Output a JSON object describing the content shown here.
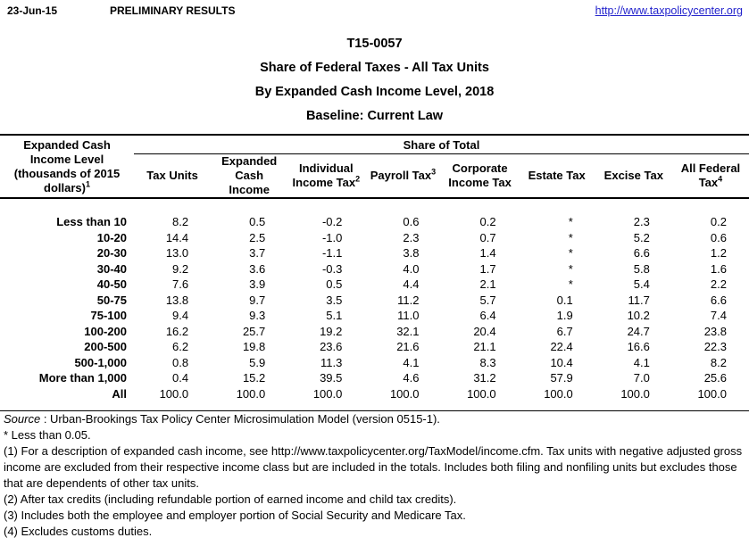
{
  "header": {
    "date": "23-Jun-15",
    "status": "PRELIMINARY RESULTS",
    "link": "http://www.taxpolicycenter.org"
  },
  "titles": [
    "T15-0057",
    "Share of Federal Taxes - All Tax Units",
    "By Expanded Cash Income Level, 2018",
    "Baseline: Current Law"
  ],
  "table": {
    "row_header": {
      "lines": [
        "Expanded Cash",
        "Income Level",
        "(thousands of 2015",
        "dollars)"
      ],
      "sup": "1"
    },
    "group_header": "Share of Total",
    "columns": [
      {
        "lines": [
          "Tax Units"
        ],
        "sup": null
      },
      {
        "lines": [
          "Expanded Cash",
          "Income"
        ],
        "sup": null
      },
      {
        "lines": [
          "Individual",
          "Income Tax"
        ],
        "sup": "2"
      },
      {
        "lines": [
          "Payroll Tax"
        ],
        "sup": "3"
      },
      {
        "lines": [
          "Corporate",
          "Income Tax"
        ],
        "sup": null
      },
      {
        "lines": [
          "Estate Tax"
        ],
        "sup": null
      },
      {
        "lines": [
          "Excise Tax"
        ],
        "sup": null
      },
      {
        "lines": [
          "All Federal",
          "Tax"
        ],
        "sup": "4"
      }
    ],
    "rows": [
      {
        "label": "Less than 10",
        "values": [
          "8.2",
          "0.5",
          "-0.2",
          "0.6",
          "0.2",
          "*",
          "2.3",
          "0.2"
        ]
      },
      {
        "label": "10-20",
        "values": [
          "14.4",
          "2.5",
          "-1.0",
          "2.3",
          "0.7",
          "*",
          "5.2",
          "0.6"
        ]
      },
      {
        "label": "20-30",
        "values": [
          "13.0",
          "3.7",
          "-1.1",
          "3.8",
          "1.4",
          "*",
          "6.6",
          "1.2"
        ]
      },
      {
        "label": "30-40",
        "values": [
          "9.2",
          "3.6",
          "-0.3",
          "4.0",
          "1.7",
          "*",
          "5.8",
          "1.6"
        ]
      },
      {
        "label": "40-50",
        "values": [
          "7.6",
          "3.9",
          "0.5",
          "4.4",
          "2.1",
          "*",
          "5.4",
          "2.2"
        ]
      },
      {
        "label": "50-75",
        "values": [
          "13.8",
          "9.7",
          "3.5",
          "11.2",
          "5.7",
          "0.1",
          "11.7",
          "6.6"
        ]
      },
      {
        "label": "75-100",
        "values": [
          "9.4",
          "9.3",
          "5.1",
          "11.0",
          "6.4",
          "1.9",
          "10.2",
          "7.4"
        ]
      },
      {
        "label": "100-200",
        "values": [
          "16.2",
          "25.7",
          "19.2",
          "32.1",
          "20.4",
          "6.7",
          "24.7",
          "23.8"
        ]
      },
      {
        "label": "200-500",
        "values": [
          "6.2",
          "19.8",
          "23.6",
          "21.6",
          "21.1",
          "22.4",
          "16.6",
          "22.3"
        ]
      },
      {
        "label": "500-1,000",
        "values": [
          "0.8",
          "5.9",
          "11.3",
          "4.1",
          "8.3",
          "10.4",
          "4.1",
          "8.2"
        ]
      },
      {
        "label": "More than 1,000",
        "values": [
          "0.4",
          "15.2",
          "39.5",
          "4.6",
          "31.2",
          "57.9",
          "7.0",
          "25.6"
        ]
      },
      {
        "label": "All",
        "values": [
          "100.0",
          "100.0",
          "100.0",
          "100.0",
          "100.0",
          "100.0",
          "100.0",
          "100.0"
        ]
      }
    ]
  },
  "footnotes": {
    "source_label": "Source",
    "source_text": " : Urban-Brookings Tax Policy Center Microsimulation Model (version 0515-1).",
    "notes": [
      "* Less than 0.05.",
      "(1) For a description of expanded cash income, see http://www.taxpolicycenter.org/TaxModel/income.cfm. Tax units with negative adjusted gross income are excluded from their respective income class but are included in the totals. Includes both filing and nonfiling units but excludes those that are dependents of other tax units.",
      "(2) After tax credits (including refundable portion of earned income and child tax credits).",
      "(3) Includes both the employee and employer portion of Social Security and Medicare Tax.",
      "(4) Excludes customs duties."
    ]
  },
  "colors": {
    "link": "#2222cc",
    "text": "#000000",
    "background": "#ffffff"
  }
}
